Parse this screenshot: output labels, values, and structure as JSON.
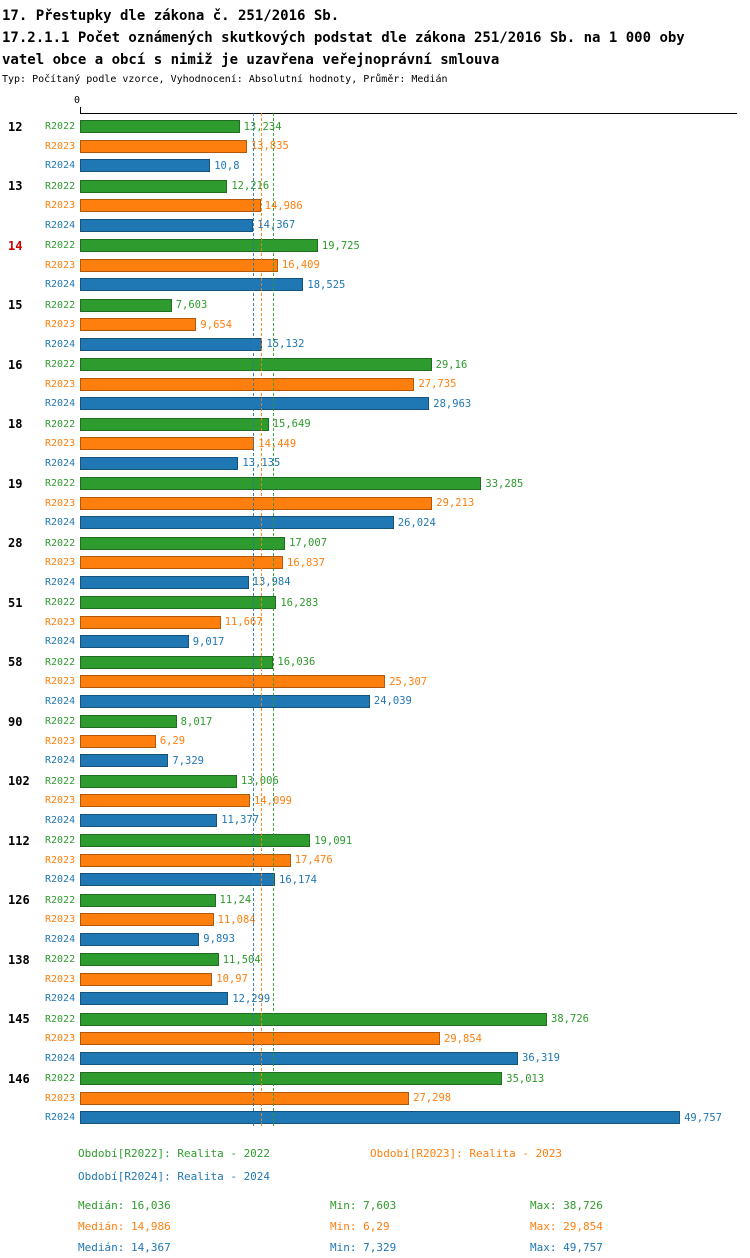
{
  "header": {
    "title_line1": "17. Přestupky dle zákona č. 251/2016 Sb.",
    "title_line2": "17.2.1.1 Počet oznámených skutkových podstat dle zákona 251/2016 Sb. na 1 000 oby",
    "title_line3": "vatel obce a obcí s nimiž je uzavřena veřejnoprávní smlouva",
    "subtitle": "Typ: Počítaný podle vzorce, Vyhodnocení: Absolutní hodnoty, Průměr: Medián"
  },
  "axis": {
    "zero_label": "0"
  },
  "colors": {
    "R2022": "#2e9b2e",
    "R2023": "#ff7f0e",
    "R2024": "#1f77b4",
    "highlight_category": "#cc0000",
    "axis": "#000000"
  },
  "chart_data": {
    "type": "bar",
    "orientation": "horizontal",
    "title": "17.2.1.1 Počet oznámených skutkových podstat dle zákona 251/2016 Sb. na 1 000 obyvatel obce a obcí s nimiž je uzavřena veřejnoprávní smlouva",
    "xlabel": "",
    "ylabel": "",
    "xlim": [
      0,
      54.3
    ],
    "grid": false,
    "legend_position": "bottom",
    "categories": [
      "12",
      "13",
      "14",
      "15",
      "16",
      "18",
      "19",
      "28",
      "51",
      "58",
      "90",
      "102",
      "112",
      "126",
      "138",
      "145",
      "146"
    ],
    "highlighted_categories": [
      "14"
    ],
    "series": [
      {
        "name": "R2022",
        "label": "Realita - 2022",
        "color": "#2e9b2e",
        "values": [
          13.234,
          12.216,
          19.725,
          7.603,
          29.16,
          15.649,
          33.285,
          17.007,
          16.283,
          16.036,
          8.017,
          13.006,
          19.091,
          11.24,
          11.504,
          38.726,
          35.013
        ]
      },
      {
        "name": "R2023",
        "label": "Realita - 2023",
        "color": "#ff7f0e",
        "values": [
          13.835,
          14.986,
          16.409,
          9.654,
          27.735,
          14.449,
          29.213,
          16.837,
          11.667,
          25.307,
          6.29,
          14.099,
          17.476,
          11.084,
          10.97,
          29.854,
          27.298
        ]
      },
      {
        "name": "R2024",
        "label": "Realita - 2024",
        "color": "#1f77b4",
        "values": [
          10.8,
          14.367,
          18.525,
          15.132,
          28.963,
          13.135,
          26.024,
          13.984,
          9.017,
          24.039,
          7.329,
          11.377,
          16.174,
          9.893,
          12.299,
          36.319,
          49.757
        ]
      }
    ],
    "medians": {
      "R2022": 16.036,
      "R2023": 14.986,
      "R2024": 14.367
    }
  },
  "legend": {
    "items": [
      {
        "name": "R2022",
        "label": "Období[R2022]: Realita - 2022"
      },
      {
        "name": "R2023",
        "label": "Období[R2023]: Realita - 2023"
      },
      {
        "name": "R2024",
        "label": "Období[R2024]: Realita - 2024"
      }
    ]
  },
  "stats": {
    "rows": [
      {
        "name": "R2022",
        "median": "Medián: 16,036",
        "min": "Min: 7,603",
        "max": "Max: 38,726"
      },
      {
        "name": "R2023",
        "median": "Medián: 14,986",
        "min": "Min: 6,29",
        "max": "Max: 29,854"
      },
      {
        "name": "R2024",
        "median": "Medián: 14,367",
        "min": "Min: 7,329",
        "max": "Max: 49,757"
      }
    ]
  }
}
